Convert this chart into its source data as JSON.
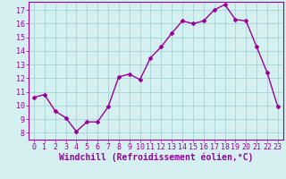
{
  "x": [
    0,
    1,
    2,
    3,
    4,
    5,
    6,
    7,
    8,
    9,
    10,
    11,
    12,
    13,
    14,
    15,
    16,
    17,
    18,
    19,
    20,
    21,
    22,
    23
  ],
  "y": [
    10.6,
    10.8,
    9.6,
    9.1,
    8.1,
    8.8,
    8.8,
    9.9,
    12.1,
    12.3,
    11.9,
    13.5,
    14.3,
    15.3,
    16.2,
    16.0,
    16.2,
    17.0,
    17.4,
    16.3,
    16.2,
    14.3,
    12.4,
    9.9
  ],
  "line_color": "#990099",
  "marker": "D",
  "marker_size": 2.0,
  "xlabel": "Windchill (Refroidissement éolien,°C)",
  "xlabel_fontsize": 7,
  "ylim": [
    7.5,
    17.6
  ],
  "xlim": [
    -0.5,
    23.5
  ],
  "yticks": [
    8,
    9,
    10,
    11,
    12,
    13,
    14,
    15,
    16,
    17
  ],
  "xticks": [
    0,
    1,
    2,
    3,
    4,
    5,
    6,
    7,
    8,
    9,
    10,
    11,
    12,
    13,
    14,
    15,
    16,
    17,
    18,
    19,
    20,
    21,
    22,
    23
  ],
  "bg_color": "#d4f0f0",
  "grid_color": "#a0d0d0",
  "tick_fontsize": 6,
  "line_width": 1.0,
  "spine_color": "#990099"
}
